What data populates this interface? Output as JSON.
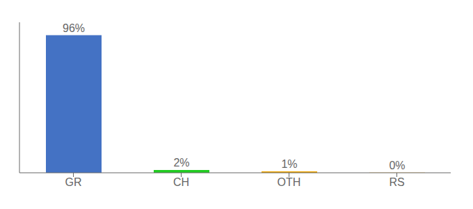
{
  "chart_data": {
    "type": "bar",
    "categories": [
      "GR",
      "CH",
      "OTH",
      "RS"
    ],
    "values": [
      96,
      2,
      1,
      0.1
    ],
    "value_labels": [
      "96%",
      "2%",
      "1%",
      "0%"
    ],
    "colors": [
      "#4472C4",
      "#22CC22",
      "#F0A500",
      "#F0A500"
    ],
    "ylim": [
      0,
      105
    ],
    "yticks": [],
    "tick_labels": "x",
    "data_labels": true
  }
}
